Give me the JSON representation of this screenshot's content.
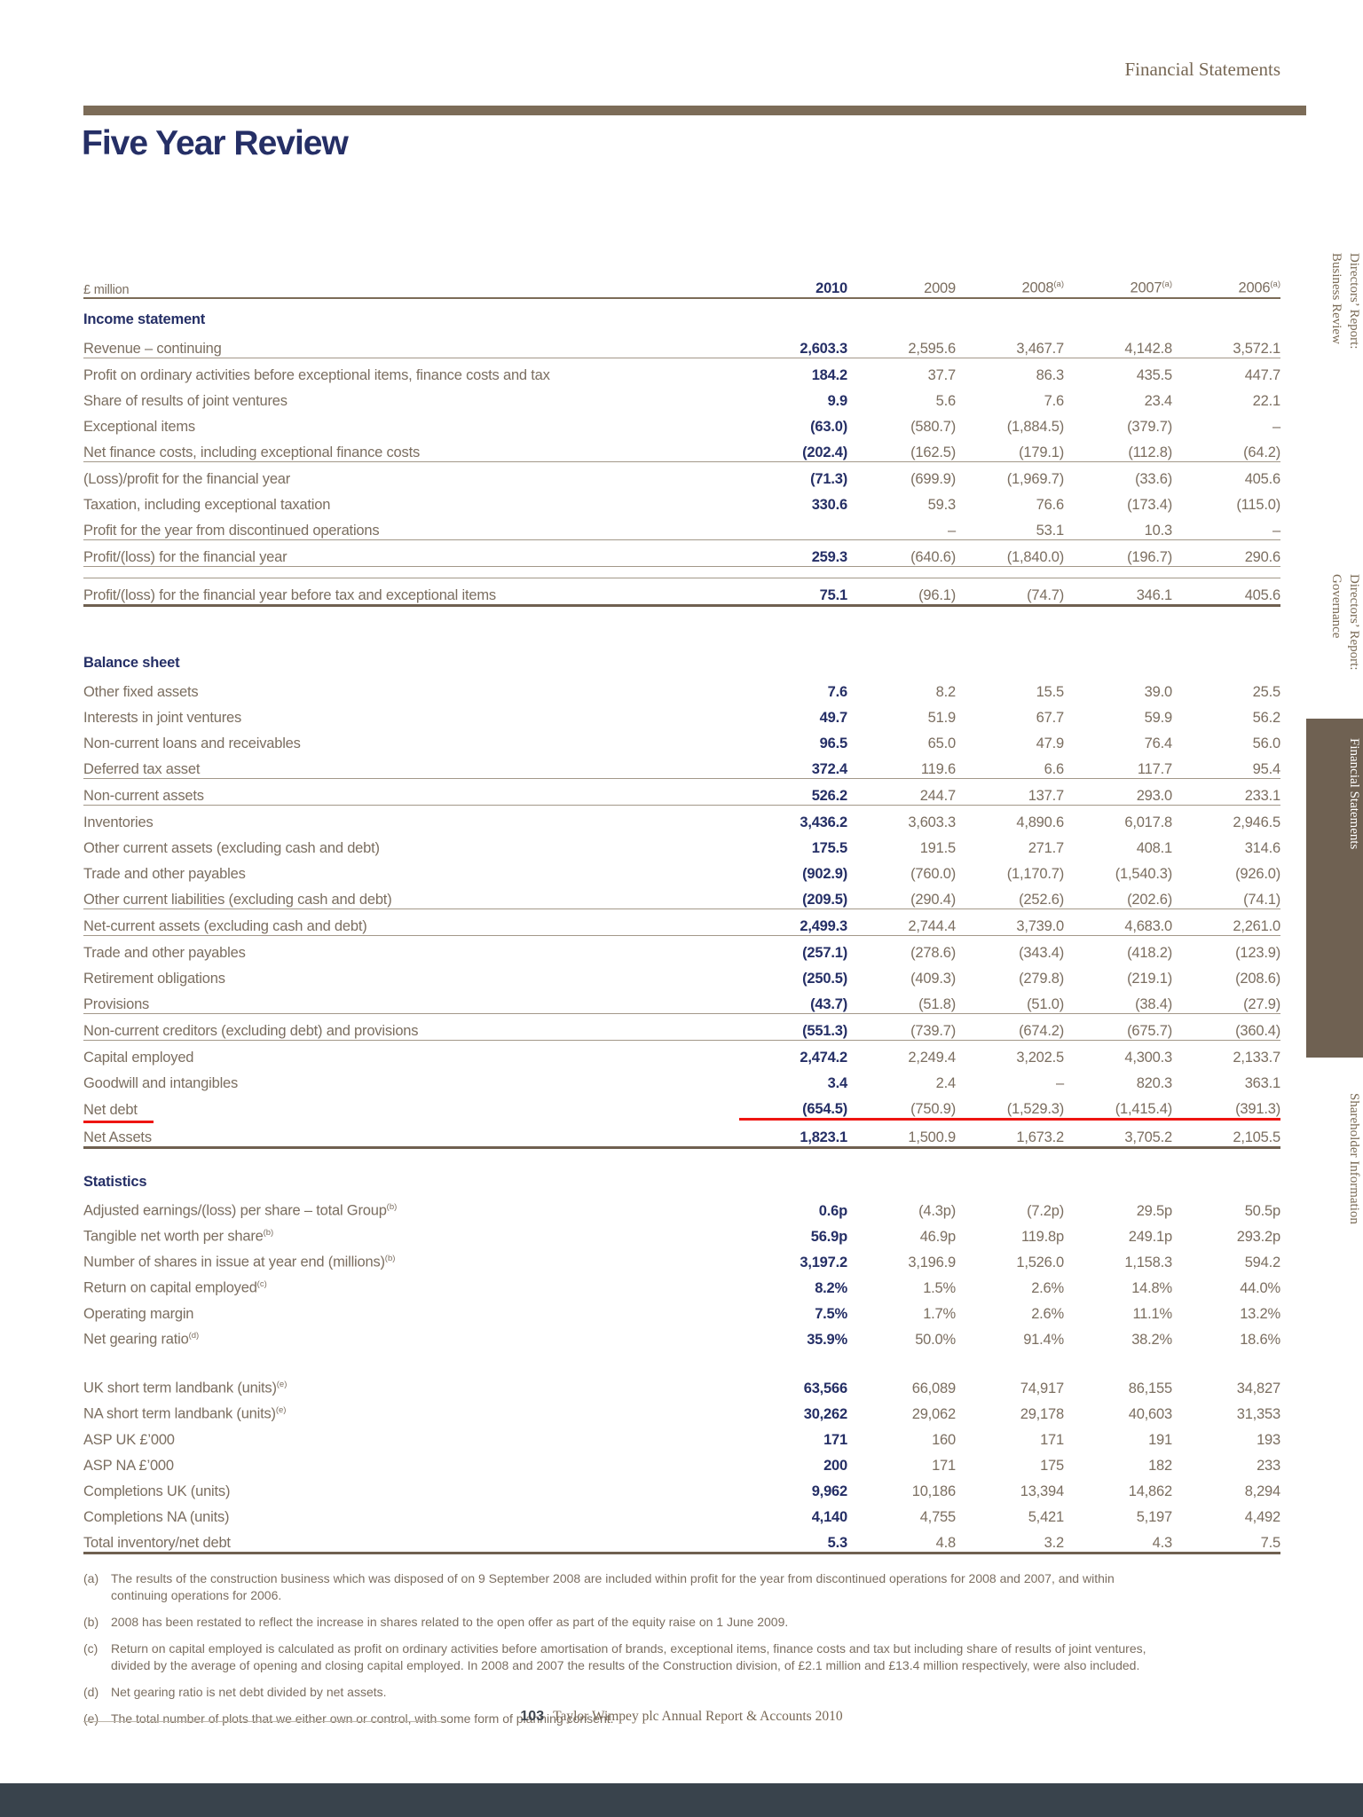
{
  "page": {
    "header_label": "Financial Statements",
    "title": "Five Year Review",
    "footer": {
      "page_number": "103",
      "text": "Taylor Wimpey plc Annual Report & Accounts 2010"
    }
  },
  "sidebar": {
    "tabs": [
      {
        "id": "directors-report-business-review",
        "line1": "Directors’ Report:",
        "line2": "Business Review",
        "active": false
      },
      {
        "id": "directors-report-governance",
        "line1": "Directors’ Report:",
        "line2": "Governance",
        "active": false
      },
      {
        "id": "financial-statements",
        "line1": "Financial Statements",
        "line2": "",
        "active": true
      },
      {
        "id": "shareholder-information",
        "line1": "Shareholder Information",
        "line2": "",
        "active": false
      }
    ]
  },
  "table": {
    "unit_label": "£ million",
    "years": [
      {
        "label": "2010",
        "sup": "",
        "highlight": true
      },
      {
        "label": "2009",
        "sup": "",
        "highlight": false
      },
      {
        "label": "2008",
        "sup": "(a)",
        "highlight": false
      },
      {
        "label": "2007",
        "sup": "(a)",
        "highlight": false
      },
      {
        "label": "2006",
        "sup": "(a)",
        "highlight": false
      }
    ],
    "sections": [
      {
        "heading": "Income statement",
        "gap_before": 0,
        "rows": [
          {
            "label": "Revenue – continuing",
            "sup": "",
            "values": [
              "2,603.3",
              "2,595.6",
              "3,467.7",
              "4,142.8",
              "3,572.1"
            ],
            "rule": "thin",
            "gap_before": 0
          },
          {
            "label": "Profit on ordinary activities before exceptional items, finance costs and tax",
            "sup": "",
            "values": [
              "184.2",
              "37.7",
              "86.3",
              "435.5",
              "447.7"
            ],
            "rule": "none",
            "gap_before": 0
          },
          {
            "label": "Share of results of joint ventures",
            "sup": "",
            "values": [
              "9.9",
              "5.6",
              "7.6",
              "23.4",
              "22.1"
            ],
            "rule": "none",
            "gap_before": 0
          },
          {
            "label": "Exceptional items",
            "sup": "",
            "values": [
              "(63.0)",
              "(580.7)",
              "(1,884.5)",
              "(379.7)",
              "–"
            ],
            "rule": "none",
            "gap_before": 0
          },
          {
            "label": "Net finance costs, including exceptional finance costs",
            "sup": "",
            "values": [
              "(202.4)",
              "(162.5)",
              "(179.1)",
              "(112.8)",
              "(64.2)"
            ],
            "rule": "thin",
            "gap_before": 0
          },
          {
            "label": "(Loss)/profit for the financial year",
            "sup": "",
            "values": [
              "(71.3)",
              "(699.9)",
              "(1,969.7)",
              "(33.6)",
              "405.6"
            ],
            "rule": "none",
            "gap_before": 0
          },
          {
            "label": "Taxation, including exceptional taxation",
            "sup": "",
            "values": [
              "330.6",
              "59.3",
              "76.6",
              "(173.4)",
              "(115.0)"
            ],
            "rule": "none",
            "gap_before": 0
          },
          {
            "label": "Profit for the year from discontinued operations",
            "sup": "",
            "values": [
              "",
              "–",
              "53.1",
              "10.3",
              "–"
            ],
            "rule": "thin",
            "gap_before": 0
          },
          {
            "label": "Profit/(loss) for the financial year",
            "sup": "",
            "values": [
              "259.3",
              "(640.6)",
              "(1,840.0)",
              "(196.7)",
              "290.6"
            ],
            "rule": "thin",
            "gap_before": 0
          },
          {
            "label": "Profit/(loss) for the financial year before tax and exceptional items",
            "sup": "",
            "values": [
              "75.1",
              "(96.1)",
              "(74.7)",
              "346.1",
              "405.6"
            ],
            "rule": "topthick",
            "gap_before": 12
          }
        ]
      },
      {
        "heading": "Balance sheet",
        "gap_before": 40,
        "rows": [
          {
            "label": "Other fixed assets",
            "sup": "",
            "values": [
              "7.6",
              "8.2",
              "15.5",
              "39.0",
              "25.5"
            ],
            "rule": "none",
            "gap_before": 0
          },
          {
            "label": "Interests in joint ventures",
            "sup": "",
            "values": [
              "49.7",
              "51.9",
              "67.7",
              "59.9",
              "56.2"
            ],
            "rule": "none",
            "gap_before": 0
          },
          {
            "label": "Non-current loans and receivables",
            "sup": "",
            "values": [
              "96.5",
              "65.0",
              "47.9",
              "76.4",
              "56.0"
            ],
            "rule": "none",
            "gap_before": 0
          },
          {
            "label": "Deferred tax asset",
            "sup": "",
            "values": [
              "372.4",
              "119.6",
              "6.6",
              "117.7",
              "95.4"
            ],
            "rule": "thin",
            "gap_before": 0
          },
          {
            "label": "Non-current assets",
            "sup": "",
            "values": [
              "526.2",
              "244.7",
              "137.7",
              "293.0",
              "233.1"
            ],
            "rule": "thin",
            "gap_before": 0
          },
          {
            "label": "Inventories",
            "sup": "",
            "values": [
              "3,436.2",
              "3,603.3",
              "4,890.6",
              "6,017.8",
              "2,946.5"
            ],
            "rule": "none",
            "gap_before": 0
          },
          {
            "label": "Other current assets (excluding cash and debt)",
            "sup": "",
            "values": [
              "175.5",
              "191.5",
              "271.7",
              "408.1",
              "314.6"
            ],
            "rule": "none",
            "gap_before": 0
          },
          {
            "label": "Trade and other payables",
            "sup": "",
            "values": [
              "(902.9)",
              "(760.0)",
              "(1,170.7)",
              "(1,540.3)",
              "(926.0)"
            ],
            "rule": "none",
            "gap_before": 0
          },
          {
            "label": "Other current liabilities (excluding cash and debt)",
            "sup": "",
            "values": [
              "(209.5)",
              "(290.4)",
              "(252.6)",
              "(202.6)",
              "(74.1)"
            ],
            "rule": "thin",
            "gap_before": 0
          },
          {
            "label": "Net-current assets (excluding cash and debt)",
            "sup": "",
            "values": [
              "2,499.3",
              "2,744.4",
              "3,739.0",
              "4,683.0",
              "2,261.0"
            ],
            "rule": "thin",
            "gap_before": 0
          },
          {
            "label": "Trade and other payables",
            "sup": "",
            "values": [
              "(257.1)",
              "(278.6)",
              "(343.4)",
              "(418.2)",
              "(123.9)"
            ],
            "rule": "none",
            "gap_before": 0
          },
          {
            "label": "Retirement obligations",
            "sup": "",
            "values": [
              "(250.5)",
              "(409.3)",
              "(279.8)",
              "(219.1)",
              "(208.6)"
            ],
            "rule": "none",
            "gap_before": 0
          },
          {
            "label": "Provisions",
            "sup": "",
            "values": [
              "(43.7)",
              "(51.8)",
              "(51.0)",
              "(38.4)",
              "(27.9)"
            ],
            "rule": "thin",
            "gap_before": 0
          },
          {
            "label": "Non-current creditors (excluding debt) and provisions",
            "sup": "",
            "values": [
              "(551.3)",
              "(739.7)",
              "(674.2)",
              "(675.7)",
              "(360.4)"
            ],
            "rule": "thin",
            "gap_before": 0
          },
          {
            "label": "Capital employed",
            "sup": "",
            "values": [
              "2,474.2",
              "2,249.4",
              "3,202.5",
              "4,300.3",
              "2,133.7"
            ],
            "rule": "none",
            "gap_before": 0
          },
          {
            "label": "Goodwill and intangibles",
            "sup": "",
            "values": [
              "3.4",
              "2.4",
              "–",
              "820.3",
              "363.1"
            ],
            "rule": "none",
            "gap_before": 0
          },
          {
            "label": "Net debt",
            "sup": "",
            "values": [
              "(654.5)",
              "(750.9)",
              "(1,529.3)",
              "(1,415.4)",
              "(391.3)"
            ],
            "rule": "red",
            "gap_before": 0
          },
          {
            "label": "Net Assets",
            "sup": "",
            "values": [
              "1,823.1",
              "1,500.9",
              "1,673.2",
              "3,705.2",
              "2,105.5"
            ],
            "rule": "thick",
            "gap_before": 0
          }
        ]
      },
      {
        "heading": "Statistics",
        "gap_before": 14,
        "rows": [
          {
            "label": "Adjusted earnings/(loss) per share – total Group",
            "sup": "(b)",
            "values": [
              "0.6p",
              "(4.3p)",
              "(7.2p)",
              "29.5p",
              "50.5p"
            ],
            "rule": "none",
            "gap_before": 0
          },
          {
            "label": "Tangible net worth per share",
            "sup": "(b)",
            "values": [
              "56.9p",
              "46.9p",
              "119.8p",
              "249.1p",
              "293.2p"
            ],
            "rule": "none",
            "gap_before": 0
          },
          {
            "label": "Number of shares in issue at year end (millions)",
            "sup": "(b)",
            "values": [
              "3,197.2",
              "3,196.9",
              "1,526.0",
              "1,158.3",
              "594.2"
            ],
            "rule": "none",
            "gap_before": 0
          },
          {
            "label": "Return on capital employed",
            "sup": "(c)",
            "values": [
              "8.2%",
              "1.5%",
              "2.6%",
              "14.8%",
              "44.0%"
            ],
            "rule": "none",
            "gap_before": 0
          },
          {
            "label": "Operating margin",
            "sup": "",
            "values": [
              "7.5%",
              "1.7%",
              "2.6%",
              "11.1%",
              "13.2%"
            ],
            "rule": "none",
            "gap_before": 0
          },
          {
            "label": "Net gearing ratio",
            "sup": "(d)",
            "values": [
              "35.9%",
              "50.0%",
              "91.4%",
              "38.2%",
              "18.6%"
            ],
            "rule": "none",
            "gap_before": 0
          },
          {
            "label": "UK short term landbank (units)",
            "sup": "(e)",
            "values": [
              "63,566",
              "66,089",
              "74,917",
              "86,155",
              "34,827"
            ],
            "rule": "none",
            "gap_before": 26
          },
          {
            "label": "NA short term landbank (units)",
            "sup": "(e)",
            "values": [
              "30,262",
              "29,062",
              "29,178",
              "40,603",
              "31,353"
            ],
            "rule": "none",
            "gap_before": 0
          },
          {
            "label": "ASP UK £’000",
            "sup": "",
            "values": [
              "171",
              "160",
              "171",
              "191",
              "193"
            ],
            "rule": "none",
            "gap_before": 0
          },
          {
            "label": "ASP NA £’000",
            "sup": "",
            "values": [
              "200",
              "171",
              "175",
              "182",
              "233"
            ],
            "rule": "none",
            "gap_before": 0
          },
          {
            "label": "Completions UK (units)",
            "sup": "",
            "values": [
              "9,962",
              "10,186",
              "13,394",
              "14,862",
              "8,294"
            ],
            "rule": "none",
            "gap_before": 0
          },
          {
            "label": "Completions NA (units)",
            "sup": "",
            "values": [
              "4,140",
              "4,755",
              "5,421",
              "5,197",
              "4,492"
            ],
            "rule": "none",
            "gap_before": 0
          },
          {
            "label": "Total inventory/net debt",
            "sup": "",
            "values": [
              "5.3",
              "4.8",
              "3.2",
              "4.3",
              "7.5"
            ],
            "rule": "thick",
            "gap_before": 0
          }
        ]
      }
    ]
  },
  "footnotes": [
    {
      "marker": "(a)",
      "lines": [
        "The results of the construction business which was disposed of on 9 September 2008 are included within profit for the year from discontinued operations for 2008 and 2007, and within",
        "continuing operations for 2006."
      ]
    },
    {
      "marker": "(b)",
      "lines": [
        "2008 has been restated to reflect the increase in shares related to the open offer as part of the equity raise on 1 June 2009."
      ]
    },
    {
      "marker": "(c)",
      "lines": [
        "Return on capital employed is calculated as profit on ordinary activities before amortisation of brands, exceptional items, finance costs and tax but including share of results of joint ventures,",
        "divided by the average of opening and closing capital employed. In 2008 and 2007 the results of the Construction division, of £2.1 million and £13.4 million respectively, were also included."
      ]
    },
    {
      "marker": "(d)",
      "lines": [
        "Net gearing ratio is net debt divided by net assets."
      ]
    },
    {
      "marker": "(e)",
      "lines": [
        "The total number of plots that we either own or control, with some form of planning consent."
      ]
    }
  ],
  "colors": {
    "navy": "#252f66",
    "body_brown": "#7b6e60",
    "rule_brown": "#7c6c58",
    "thick_rule": "#6f6050",
    "red_annotation": "#ee1511",
    "sidebar_active_bg": "#6f6152",
    "bottom_bar": "#39434c"
  }
}
